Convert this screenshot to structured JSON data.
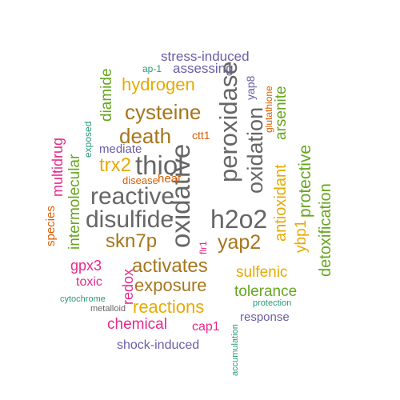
{
  "words": [
    {
      "text": "stress-induced",
      "color": "#6a5ea6",
      "orientation": "horizontal"
    },
    {
      "text": "ap-1",
      "color": "#2a9a7a",
      "orientation": "horizontal"
    },
    {
      "text": "assessing",
      "color": "#6a5ea6",
      "orientation": "horizontal"
    },
    {
      "text": "hydrogen",
      "color": "#e6ab02",
      "orientation": "horizontal"
    },
    {
      "text": "diamide",
      "color": "#66a61e",
      "orientation": "vertical"
    },
    {
      "text": "cysteine",
      "color": "#a6761d",
      "orientation": "horizontal"
    },
    {
      "text": "peroxidase",
      "color": "#666666",
      "orientation": "vertical"
    },
    {
      "text": "yap8",
      "color": "#6a5ea6",
      "orientation": "vertical"
    },
    {
      "text": "glutathione",
      "color": "#d95f02",
      "orientation": "vertical"
    },
    {
      "text": "arsenite",
      "color": "#66a61e",
      "orientation": "vertical"
    },
    {
      "text": "oxidation",
      "color": "#666666",
      "orientation": "vertical"
    },
    {
      "text": "death",
      "color": "#a6761d",
      "orientation": "horizontal"
    },
    {
      "text": "multidrug",
      "color": "#e7298a",
      "orientation": "vertical"
    },
    {
      "text": "exposed",
      "color": "#2a9a7a",
      "orientation": "vertical"
    },
    {
      "text": "ctt1",
      "color": "#d95f02",
      "orientation": "horizontal"
    },
    {
      "text": "mediate",
      "color": "#6a5ea6",
      "orientation": "horizontal"
    },
    {
      "text": "oxidative",
      "color": "#666666",
      "orientation": "vertical"
    },
    {
      "text": "protective",
      "color": "#66a61e",
      "orientation": "vertical"
    },
    {
      "text": "trx2",
      "color": "#e6ab02",
      "orientation": "horizontal"
    },
    {
      "text": "thiol",
      "color": "#666666",
      "orientation": "horizontal"
    },
    {
      "text": "antioxidant",
      "color": "#e6ab02",
      "orientation": "vertical"
    },
    {
      "text": "disease",
      "color": "#d95f02",
      "orientation": "horizontal"
    },
    {
      "text": "heat",
      "color": "#d95f02",
      "orientation": "horizontal"
    },
    {
      "text": "intermolecular",
      "color": "#66a61e",
      "orientation": "vertical"
    },
    {
      "text": "reactive",
      "color": "#666666",
      "orientation": "horizontal"
    },
    {
      "text": "detoxification",
      "color": "#66a61e",
      "orientation": "vertical"
    },
    {
      "text": "species",
      "color": "#d95f02",
      "orientation": "vertical"
    },
    {
      "text": "disulfide",
      "color": "#666666",
      "orientation": "horizontal"
    },
    {
      "text": "h2o2",
      "color": "#666666",
      "orientation": "horizontal"
    },
    {
      "text": "ybp1",
      "color": "#e6ab02",
      "orientation": "vertical"
    },
    {
      "text": "skn7p",
      "color": "#a6761d",
      "orientation": "horizontal"
    },
    {
      "text": "flr1",
      "color": "#e7298a",
      "orientation": "vertical"
    },
    {
      "text": "yap2",
      "color": "#a6761d",
      "orientation": "horizontal"
    },
    {
      "text": "gpx3",
      "color": "#e7298a",
      "orientation": "horizontal"
    },
    {
      "text": "activates",
      "color": "#a6761d",
      "orientation": "horizontal"
    },
    {
      "text": "sulfenic",
      "color": "#e6ab02",
      "orientation": "horizontal"
    },
    {
      "text": "redox",
      "color": "#e7298a",
      "orientation": "vertical"
    },
    {
      "text": "toxic",
      "color": "#e7298a",
      "orientation": "horizontal"
    },
    {
      "text": "exposure",
      "color": "#a6761d",
      "orientation": "horizontal"
    },
    {
      "text": "tolerance",
      "color": "#66a61e",
      "orientation": "horizontal"
    },
    {
      "text": "cytochrome",
      "color": "#2a9a7a",
      "orientation": "horizontal"
    },
    {
      "text": "protection",
      "color": "#2a9a7a",
      "orientation": "horizontal"
    },
    {
      "text": "metalloid",
      "color": "#666666",
      "orientation": "horizontal"
    },
    {
      "text": "reactions",
      "color": "#e6ab02",
      "orientation": "horizontal"
    },
    {
      "text": "response",
      "color": "#6a5ea6",
      "orientation": "horizontal"
    },
    {
      "text": "chemical",
      "color": "#e7298a",
      "orientation": "horizontal"
    },
    {
      "text": "cap1",
      "color": "#e7298a",
      "orientation": "horizontal"
    },
    {
      "text": "accumulation",
      "color": "#2a9a7a",
      "orientation": "vertical"
    },
    {
      "text": "shock-induced",
      "color": "#6a5ea6",
      "orientation": "horizontal"
    }
  ]
}
